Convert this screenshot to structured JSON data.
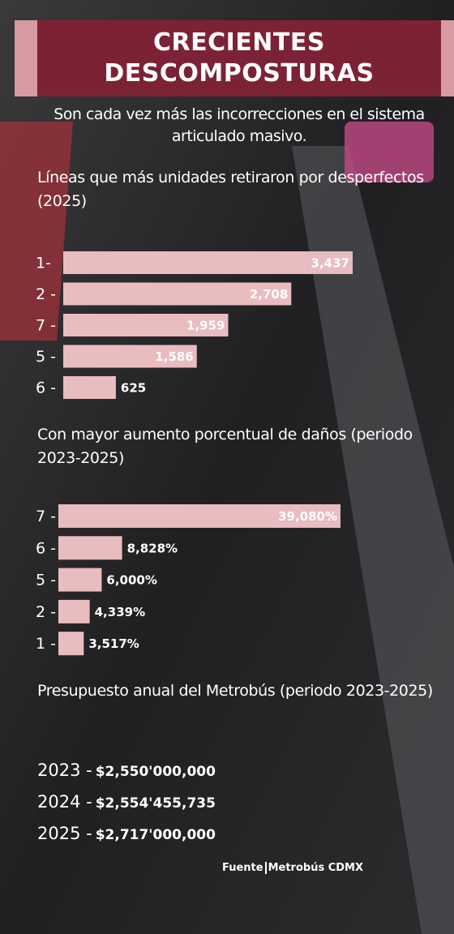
{
  "title": "CRECIENTES DESCOMPOSTURAS",
  "subtitle": "Son cada vez más las incorrecciones en el sistema articulado masivo.",
  "chart_data": [
    {
      "type": "bar",
      "title": "Líneas que más unidades retiraron por desperfectos (2025)",
      "categories": [
        "1-",
        "2 -",
        "7 -",
        "5 -",
        "6 -"
      ],
      "values": [
        3437,
        2708,
        1959,
        1586,
        625
      ],
      "value_labels": [
        "3,437",
        "2,708",
        "1,959",
        "1,586",
        "625"
      ],
      "color": "#e9bcbf"
    },
    {
      "type": "bar",
      "title": "Con mayor aumento porcentual de daños (periodo 2023-2025)",
      "categories": [
        "7 -",
        "6 -",
        "5 -",
        "2 -",
        "1 -"
      ],
      "values": [
        39080,
        8828,
        6000,
        4339,
        3517
      ],
      "value_labels": [
        "39,080%",
        "8,828%",
        "6,000%",
        "4,339%",
        "3,517%"
      ],
      "color": "#e9bcbf"
    }
  ],
  "budget": {
    "title": "Presupuesto anual del Metrobús (periodo 2023-2025)",
    "items": [
      {
        "label": "2023 -",
        "amount": "$2,550'000,000"
      },
      {
        "label": "2024 -",
        "amount": "$2,554'455,735"
      },
      {
        "label": "2025 -",
        "amount": "$2,717'000,000"
      }
    ]
  },
  "source": {
    "label": "Fuente",
    "name": "Metrobús CDMX"
  }
}
